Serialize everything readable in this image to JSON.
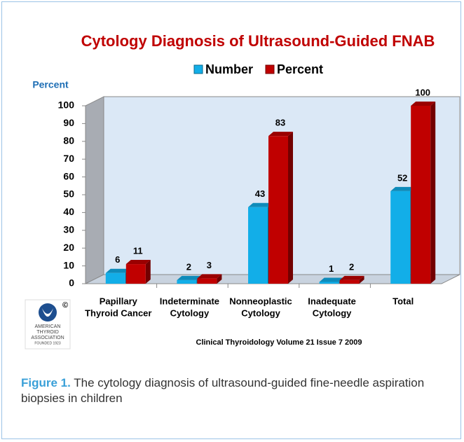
{
  "chart_data": {
    "type": "bar3d",
    "title": "Cytology Diagnosis of Ultrasound-Guided FNAB",
    "y_label": "Percent",
    "categories": [
      [
        "Papillary",
        "Thyroid Cancer"
      ],
      [
        "Indeterminate",
        "Cytology"
      ],
      [
        "Nonneoplastic",
        "Cytology"
      ],
      [
        "Inadequate",
        "Cytology"
      ],
      [
        "Total"
      ]
    ],
    "series": [
      {
        "name": "Number",
        "color": "#12aee8",
        "values": [
          6,
          2,
          43,
          1,
          52
        ]
      },
      {
        "name": "Percent",
        "color": "#c00000",
        "values": [
          11,
          3,
          83,
          2,
          100
        ]
      }
    ],
    "ylim": [
      0,
      100
    ],
    "yticks": [
      0,
      10,
      20,
      30,
      40,
      50,
      60,
      70,
      80,
      90,
      100
    ],
    "grid": false,
    "legend": "top",
    "source": "Clinical Thyroidology Volume 21 Issue 7 2009"
  },
  "logo": {
    "copyright": "©",
    "lines": [
      "AMERICAN",
      "THYROID",
      "ASSOCIATION",
      "FOUNDED 1923"
    ]
  },
  "caption": {
    "label": "Figure 1.",
    "text": "The cytology diagnosis of ultrasound-guided fine-needle aspiration biopsies in children"
  }
}
